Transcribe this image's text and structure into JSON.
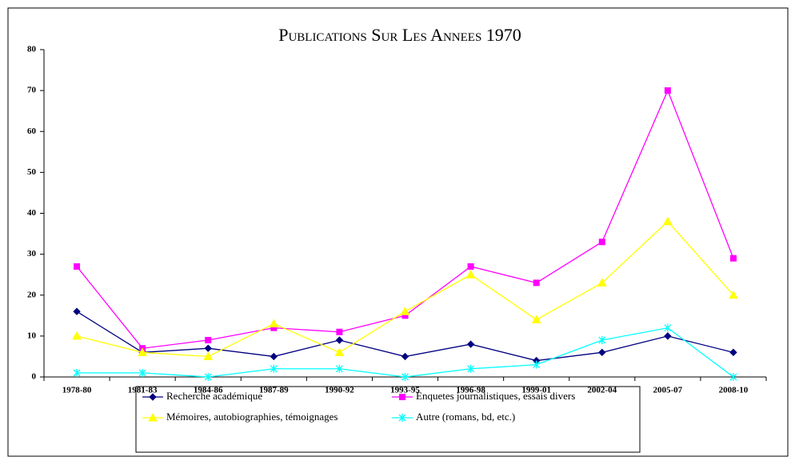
{
  "chart_data": {
    "type": "line",
    "title": "Publications Sur Les Annees 1970",
    "categories": [
      "1978-80",
      "1981-83",
      "1984-86",
      "1987-89",
      "1990-92",
      "1993-95",
      "1996-98",
      "1999-01",
      "2002-04",
      "2005-07",
      "2008-10"
    ],
    "series": [
      {
        "name": "Recherche académique",
        "color": "#000080",
        "marker": "diamond",
        "values": [
          16,
          6,
          7,
          5,
          9,
          5,
          8,
          4,
          6,
          10,
          6
        ]
      },
      {
        "name": "Enquetes journalistiques, essais divers",
        "color": "#ff00ff",
        "marker": "square",
        "values": [
          27,
          7,
          9,
          12,
          11,
          15,
          27,
          23,
          33,
          70,
          29
        ]
      },
      {
        "name": "Mémoires, autobiographies, témoignages",
        "color": "#ffff00",
        "marker": "triangle",
        "values": [
          10,
          6,
          5,
          13,
          6,
          16,
          25,
          14,
          23,
          38,
          20
        ]
      },
      {
        "name": "Autre (romans, bd, etc.)",
        "color": "#00ffff",
        "marker": "star",
        "values": [
          1,
          1,
          0,
          2,
          2,
          0,
          2,
          3,
          9,
          12,
          0
        ]
      }
    ],
    "ylim": [
      0,
      80
    ],
    "yticks": [
      0,
      10,
      20,
      30,
      40,
      50,
      60,
      70,
      80
    ],
    "grid": false
  }
}
